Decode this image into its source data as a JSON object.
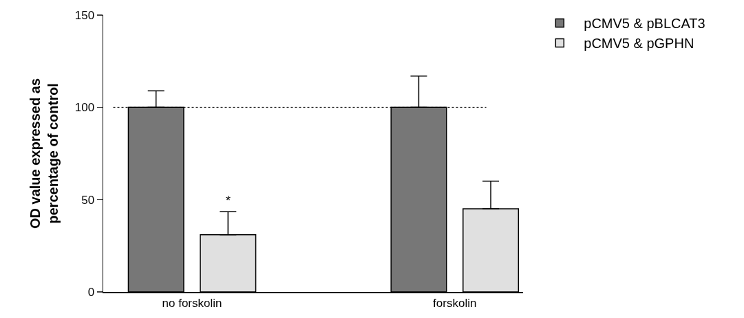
{
  "chart_data": {
    "type": "bar",
    "ylabel": "OD value expressed as percentage of control",
    "categories": [
      "no forskolin",
      "forskolin"
    ],
    "series": [
      {
        "name": "pCMV5 & pBLCAT3",
        "color": "#777777",
        "values": [
          100,
          100
        ],
        "errors": [
          [
            100,
            109
          ],
          [
            100,
            117
          ]
        ]
      },
      {
        "name": "pCMV5 & pGPHN",
        "color": "#e0e0e0",
        "values": [
          31,
          45
        ],
        "errors": [
          [
            31,
            43.5
          ],
          [
            45,
            60
          ]
        ]
      }
    ],
    "ylim": [
      0,
      150
    ],
    "yticks": [
      0,
      50,
      100,
      150
    ],
    "grid": false,
    "legend": "top right",
    "ref_lines": [
      {
        "axis": "y",
        "value": 100,
        "line_style": "dotted"
      }
    ],
    "annotations": [
      "*"
    ]
  }
}
